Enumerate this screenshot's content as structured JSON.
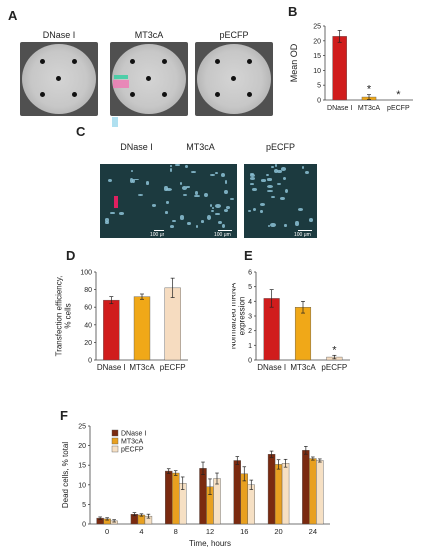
{
  "panels": {
    "A": {
      "label": "A",
      "plates": [
        "DNase I",
        "MT3cA",
        "pECFP"
      ]
    },
    "C": {
      "label": "C",
      "images": [
        "DNase I",
        "MT3cA",
        "pECFP"
      ],
      "scale": "100 μm"
    }
  },
  "chart_data": [
    {
      "panel": "B",
      "type": "bar",
      "categories": [
        "DNase I",
        "MT3cA",
        "pECFP"
      ],
      "values": [
        21.5,
        1.0,
        0.0
      ],
      "errors": [
        2.0,
        0.8,
        0
      ],
      "significance": [
        "",
        "*",
        "*"
      ],
      "ylabel": "Mean OD",
      "ylim": [
        0,
        25
      ],
      "yticks": [
        0,
        5,
        10,
        15,
        20,
        25
      ],
      "colors": [
        "#d01c1c",
        "#f0a818",
        "#f6dcc0"
      ]
    },
    {
      "panel": "D",
      "type": "bar",
      "categories": [
        "DNase I",
        "MT3cA",
        "pECFP"
      ],
      "values": [
        68,
        72,
        82
      ],
      "errors": [
        4,
        3,
        11
      ],
      "ylabel": "Transfection efficiency, % cells",
      "ylim": [
        0,
        100
      ],
      "yticks": [
        0,
        20,
        40,
        60,
        80,
        100
      ],
      "colors": [
        "#d01c1c",
        "#f0a818",
        "#f6dcc0"
      ]
    },
    {
      "panel": "E",
      "type": "bar",
      "categories": [
        "DNase I",
        "MT3cA",
        "pECFP"
      ],
      "values": [
        4.2,
        3.6,
        0.2
      ],
      "errors": [
        0.6,
        0.4,
        0.12
      ],
      "significance": [
        "",
        "",
        "*"
      ],
      "ylabel": "Normalized mRNA expression",
      "ylim": [
        0,
        6
      ],
      "yticks": [
        0,
        1,
        2,
        3,
        4,
        5,
        6
      ],
      "colors": [
        "#d01c1c",
        "#f0a818",
        "#f6dcc0"
      ]
    },
    {
      "panel": "F",
      "type": "bar",
      "categories": [
        "0",
        "4",
        "8",
        "12",
        "16",
        "20",
        "24"
      ],
      "series": [
        {
          "name": "DNase I",
          "values": [
            1.5,
            2.5,
            13.5,
            14.2,
            16.2,
            17.8,
            18.8
          ],
          "errors": [
            0.3,
            0.4,
            0.6,
            1.6,
            1.0,
            0.8,
            1.0
          ],
          "color": "#7a2a10"
        },
        {
          "name": "MT3cA",
          "values": [
            1.3,
            2.3,
            13.0,
            9.5,
            12.8,
            15.2,
            16.7
          ],
          "errors": [
            0.3,
            0.3,
            0.6,
            2.0,
            1.8,
            1.2,
            0.4
          ],
          "color": "#e8a020"
        },
        {
          "name": "pECFP",
          "values": [
            0.8,
            2.0,
            10.4,
            11.6,
            10.0,
            15.5,
            16.2
          ],
          "errors": [
            0.3,
            0.5,
            1.6,
            1.4,
            1.2,
            1.0,
            0.4
          ],
          "color": "#f6e0c4"
        }
      ],
      "xlabel": "Time, hours",
      "ylabel": "Dead cells, % total",
      "ylim": [
        0,
        25
      ],
      "yticks": [
        0,
        5,
        10,
        15,
        20,
        25
      ],
      "legend": "top-left"
    }
  ]
}
